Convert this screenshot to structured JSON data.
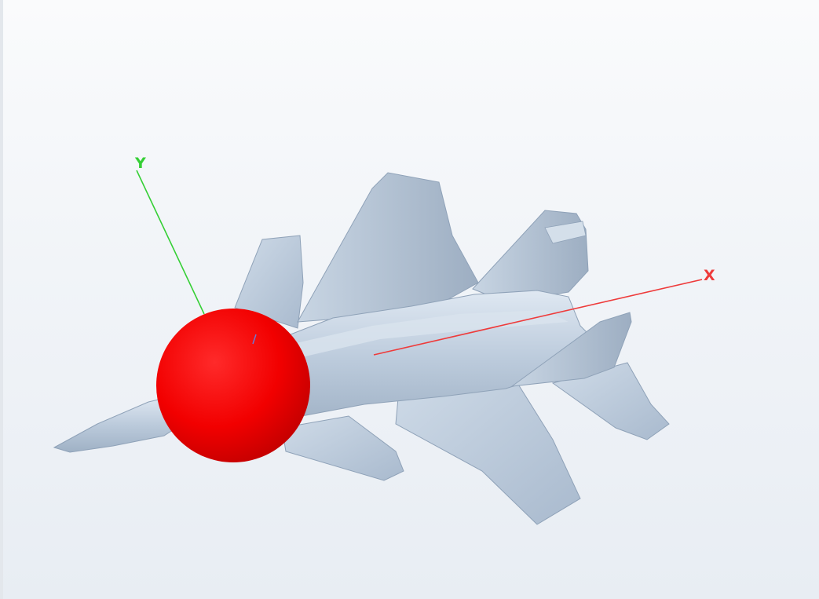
{
  "viewport": {
    "scene_object": "fighter-jet-model",
    "marker": "red-sphere"
  },
  "axes": {
    "x": {
      "label": "X",
      "color": "#ee3b3b"
    },
    "y": {
      "label": "Y",
      "color": "#35cf35"
    }
  },
  "colors": {
    "background_top": "#fafbfc",
    "background_bottom": "#e8edf3",
    "model_body": "#bccbdc",
    "model_shadow": "#8fa2b8",
    "marker": "#ff0000"
  }
}
